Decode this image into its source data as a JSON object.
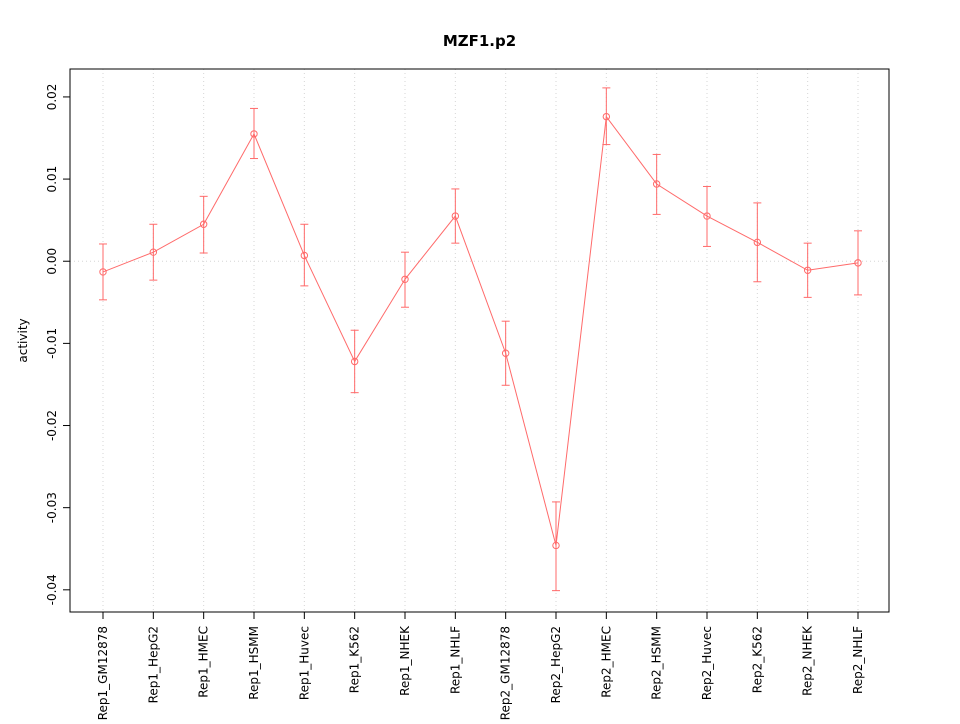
{
  "chart_data": {
    "type": "line",
    "title": "MZF1.p2",
    "xlabel": "",
    "ylabel": "activity",
    "categories": [
      "Rep1_GM12878",
      "Rep1_HepG2",
      "Rep1_HMEC",
      "Rep1_HSMM",
      "Rep1_Huvec",
      "Rep1_K562",
      "Rep1_NHEK",
      "Rep1_NHLF",
      "Rep2_GM12878",
      "Rep2_HepG2",
      "Rep2_HMEC",
      "Rep2_HSMM",
      "Rep2_Huvec",
      "Rep2_K562",
      "Rep2_NHEK",
      "Rep2_NHLF"
    ],
    "series": [
      {
        "name": "activity",
        "values": [
          -0.0013,
          0.0011,
          0.0045,
          0.0155,
          0.0007,
          -0.0122,
          -0.0022,
          0.0055,
          -0.0112,
          -0.0346,
          0.0176,
          0.0094,
          0.0055,
          0.0023,
          -0.0011,
          -0.0002
        ],
        "ci_low": [
          -0.0047,
          -0.0023,
          0.001,
          0.0125,
          -0.003,
          -0.016,
          -0.0056,
          0.0022,
          -0.0151,
          -0.0401,
          0.0142,
          0.0057,
          0.0018,
          -0.0025,
          -0.0044,
          -0.0041
        ],
        "ci_high": [
          0.0021,
          0.0045,
          0.0079,
          0.0186,
          0.0045,
          -0.0084,
          0.0011,
          0.0088,
          -0.0073,
          -0.0293,
          0.0211,
          0.013,
          0.0091,
          0.0071,
          0.0022,
          0.0037
        ]
      }
    ],
    "ytick_values": [
      0.02,
      0.01,
      0.0,
      -0.01,
      -0.02,
      -0.03,
      -0.04
    ],
    "ytick_labels": [
      "0.02",
      "0.01",
      "0.00",
      "-0.01",
      "-0.02",
      "-0.03",
      "-0.04"
    ],
    "ylim": [
      -0.0427,
      0.0234
    ],
    "grid": "vertical-dotted-per-category",
    "zero_line": true,
    "legend_position": "none",
    "line_color": "#ff6a6a",
    "grid_color": "#d6d6d6",
    "zero_line_color": "#d6d6d6",
    "box_color": "#000000"
  }
}
